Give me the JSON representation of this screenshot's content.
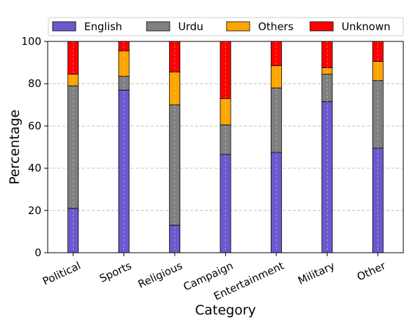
{
  "chart_data": {
    "type": "bar",
    "stacked": true,
    "xlabel": "Category",
    "ylabel": "Percentage",
    "ylim": [
      0,
      100
    ],
    "yticks": [
      0,
      20,
      40,
      60,
      80,
      100
    ],
    "grid": "horizontal dashed",
    "legend_position": "top",
    "categories": [
      "Political",
      "Sports",
      "Religious",
      "Campaign",
      "Entertainment",
      "Military",
      "Other"
    ],
    "series": [
      {
        "name": "English",
        "color": "#6a5acd",
        "values": [
          21,
          77,
          13,
          46.5,
          47.5,
          71.5,
          49.5
        ]
      },
      {
        "name": "Urdu",
        "color": "#808080",
        "values": [
          58,
          6.5,
          57,
          14,
          30.5,
          13,
          32
        ]
      },
      {
        "name": "Others",
        "color": "#ffa500",
        "values": [
          5.5,
          12,
          15.5,
          12.5,
          10.5,
          3,
          9
        ]
      },
      {
        "name": "Unknown",
        "color": "#ff0000",
        "values": [
          15.5,
          4.5,
          14.5,
          27,
          11.5,
          12.5,
          9.5
        ]
      }
    ]
  }
}
